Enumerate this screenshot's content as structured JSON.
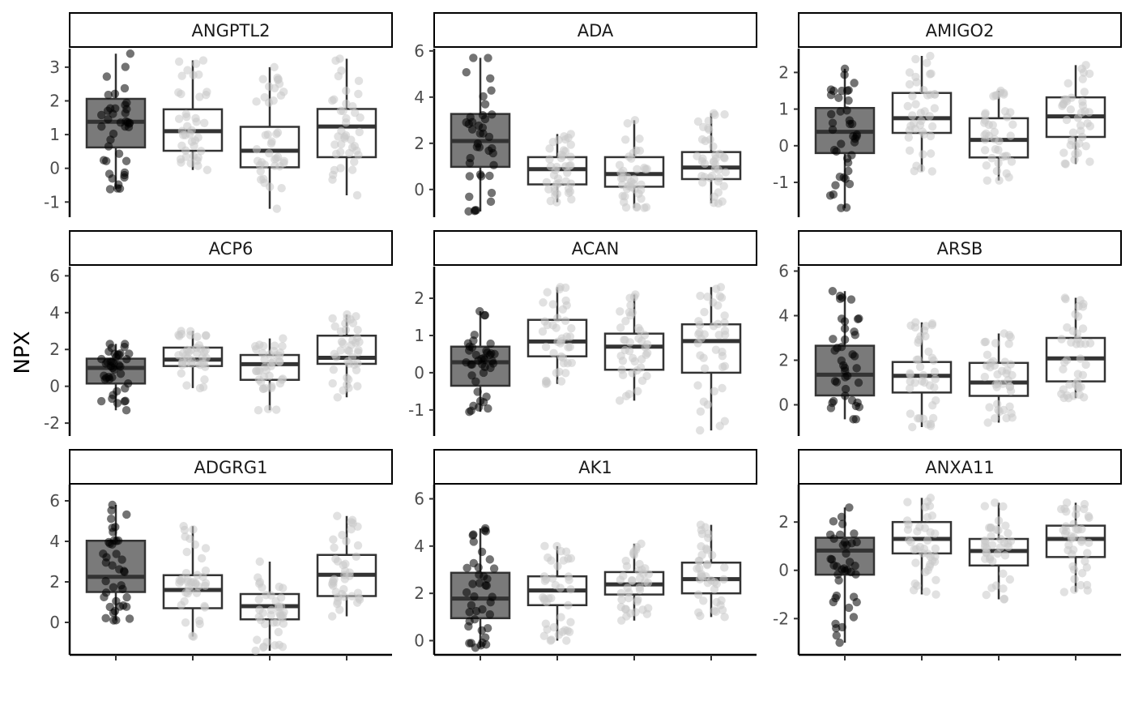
{
  "chart_data": {
    "type": "boxplot-facets",
    "ylabel": "NPX",
    "groups": [
      "",
      "",
      "",
      ""
    ],
    "group_colors": {
      "fill": [
        "#7a7a7a",
        "#ffffff",
        "#ffffff",
        "#ffffff"
      ],
      "points": [
        "#000000",
        "#c8c8c8",
        "#c8c8c8",
        "#c8c8c8"
      ]
    },
    "facets": [
      {
        "title": "ANGPTL2",
        "yticks": [
          -1,
          0,
          1,
          2,
          3
        ],
        "ylim": [
          -1.45,
          3.55
        ],
        "boxes": [
          {
            "q1": 0.62,
            "median": 1.38,
            "q3": 2.06,
            "min": -0.62,
            "max": 3.4
          },
          {
            "q1": 0.52,
            "median": 1.1,
            "q3": 1.75,
            "min": -0.05,
            "max": 3.2
          },
          {
            "q1": 0.03,
            "median": 0.52,
            "q3": 1.23,
            "min": -1.2,
            "max": 3.0
          },
          {
            "q1": 0.33,
            "median": 1.24,
            "q3": 1.76,
            "min": -0.8,
            "max": 3.25
          }
        ]
      },
      {
        "title": "ADA",
        "yticks": [
          0,
          2,
          4,
          6
        ],
        "ylim": [
          -1.2,
          6.1
        ],
        "boxes": [
          {
            "q1": 0.98,
            "median": 2.1,
            "q3": 3.27,
            "min": -0.95,
            "max": 5.7
          },
          {
            "q1": 0.22,
            "median": 0.88,
            "q3": 1.4,
            "min": -0.55,
            "max": 2.4
          },
          {
            "q1": 0.12,
            "median": 0.67,
            "q3": 1.4,
            "min": -0.8,
            "max": 3.0
          },
          {
            "q1": 0.45,
            "median": 0.95,
            "q3": 1.62,
            "min": -0.6,
            "max": 3.3
          }
        ]
      },
      {
        "title": "AMIGO2",
        "yticks": [
          -1,
          0,
          1,
          2
        ],
        "ylim": [
          -1.95,
          2.65
        ],
        "boxes": [
          {
            "q1": -0.2,
            "median": 0.38,
            "q3": 1.03,
            "min": -1.7,
            "max": 2.1
          },
          {
            "q1": 0.35,
            "median": 0.75,
            "q3": 1.44,
            "min": -0.7,
            "max": 2.45
          },
          {
            "q1": -0.32,
            "median": 0.16,
            "q3": 0.75,
            "min": -0.95,
            "max": 1.5
          },
          {
            "q1": 0.24,
            "median": 0.8,
            "q3": 1.32,
            "min": -0.5,
            "max": 2.2
          }
        ]
      },
      {
        "title": "ACP6",
        "yticks": [
          -2,
          0,
          2,
          4,
          6
        ],
        "ylim": [
          -2.7,
          6.5
        ],
        "boxes": [
          {
            "q1": 0.15,
            "median": 1.0,
            "q3": 1.5,
            "min": -1.3,
            "max": 2.3
          },
          {
            "q1": 1.1,
            "median": 1.45,
            "q3": 2.1,
            "min": -0.1,
            "max": 3.0
          },
          {
            "q1": 0.35,
            "median": 1.2,
            "q3": 1.7,
            "min": -1.3,
            "max": 2.6
          },
          {
            "q1": 1.22,
            "median": 1.55,
            "q3": 2.75,
            "min": -0.6,
            "max": 3.9
          }
        ]
      },
      {
        "title": "ACAN",
        "yticks": [
          -1,
          0,
          1,
          2
        ],
        "ylim": [
          -1.7,
          2.85
        ],
        "boxes": [
          {
            "q1": -0.35,
            "median": 0.28,
            "q3": 0.7,
            "min": -1.05,
            "max": 1.65
          },
          {
            "q1": 0.44,
            "median": 0.84,
            "q3": 1.42,
            "min": -0.3,
            "max": 2.3
          },
          {
            "q1": 0.08,
            "median": 0.7,
            "q3": 1.05,
            "min": -0.75,
            "max": 2.1
          },
          {
            "q1": 0.0,
            "median": 0.85,
            "q3": 1.3,
            "min": -1.55,
            "max": 2.3
          }
        ]
      },
      {
        "title": "ARSB",
        "yticks": [
          0,
          2,
          4,
          6
        ],
        "ylim": [
          -1.4,
          6.2
        ],
        "boxes": [
          {
            "q1": 0.42,
            "median": 1.35,
            "q3": 2.65,
            "min": -0.65,
            "max": 5.1
          },
          {
            "q1": 0.55,
            "median": 1.3,
            "q3": 1.92,
            "min": -1.0,
            "max": 3.7
          },
          {
            "q1": 0.4,
            "median": 1.0,
            "q3": 1.88,
            "min": -0.8,
            "max": 3.2
          },
          {
            "q1": 1.05,
            "median": 2.08,
            "q3": 3.0,
            "min": 0.3,
            "max": 4.8
          }
        ]
      },
      {
        "title": "ADGRG1",
        "yticks": [
          0,
          2,
          4,
          6
        ],
        "ylim": [
          -1.6,
          6.8
        ],
        "boxes": [
          {
            "q1": 1.5,
            "median": 2.25,
            "q3": 4.03,
            "min": 0.1,
            "max": 5.8
          },
          {
            "q1": 0.7,
            "median": 1.6,
            "q3": 2.33,
            "min": -0.7,
            "max": 4.75
          },
          {
            "q1": 0.15,
            "median": 0.8,
            "q3": 1.4,
            "min": -1.4,
            "max": 3.0
          },
          {
            "q1": 1.3,
            "median": 2.35,
            "q3": 3.33,
            "min": 0.3,
            "max": 5.25
          }
        ]
      },
      {
        "title": "AK1",
        "yticks": [
          0,
          2,
          4,
          6
        ],
        "ylim": [
          -0.6,
          6.6
        ],
        "boxes": [
          {
            "q1": 0.95,
            "median": 1.78,
            "q3": 2.87,
            "min": -0.3,
            "max": 4.75
          },
          {
            "q1": 1.5,
            "median": 2.12,
            "q3": 2.72,
            "min": 0.0,
            "max": 4.0
          },
          {
            "q1": 1.95,
            "median": 2.38,
            "q3": 2.9,
            "min": 0.85,
            "max": 4.1
          },
          {
            "q1": 2.0,
            "median": 2.6,
            "q3": 3.3,
            "min": 1.0,
            "max": 4.9
          }
        ]
      },
      {
        "title": "ANXA11",
        "yticks": [
          -2,
          0,
          2
        ],
        "ylim": [
          -3.5,
          3.55
        ],
        "boxes": [
          {
            "q1": -0.18,
            "median": 0.82,
            "q3": 1.35,
            "min": -3.0,
            "max": 2.6
          },
          {
            "q1": 0.7,
            "median": 1.3,
            "q3": 2.0,
            "min": -1.0,
            "max": 3.0
          },
          {
            "q1": 0.2,
            "median": 0.8,
            "q3": 1.3,
            "min": -1.2,
            "max": 2.8
          },
          {
            "q1": 0.55,
            "median": 1.3,
            "q3": 1.85,
            "min": -0.9,
            "max": 2.8
          }
        ]
      }
    ]
  }
}
